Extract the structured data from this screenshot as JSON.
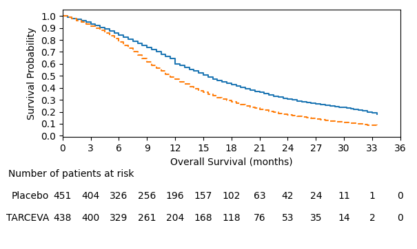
{
  "chart_data": {
    "type": "step",
    "x_label": "Overall Survival (months)",
    "y_label": "Survival Probability",
    "xlim": [
      0,
      36
    ],
    "ylim": [
      -0.01,
      1.05
    ],
    "xticks": [
      0,
      3,
      6,
      9,
      12,
      15,
      18,
      21,
      24,
      27,
      30,
      33,
      36
    ],
    "yticks": [
      {
        "value": 0,
        "label": "0.0"
      },
      0.1,
      0.2,
      0.3,
      0.4,
      0.5,
      0.6,
      0.7,
      0.8,
      0.9,
      {
        "value": 1,
        "label": "1.0"
      }
    ],
    "at_risk_title": "Number of patients at risk",
    "at_risk_x": [
      0,
      3,
      6,
      9,
      12,
      15,
      18,
      21,
      24,
      27,
      30,
      33,
      36
    ],
    "series": [
      {
        "name": "Placebo",
        "line_style": "solid",
        "x": [
          0,
          0.5,
          1.0,
          1.5,
          2.0,
          2.5,
          3.0,
          3.5,
          4.0,
          4.5,
          5.0,
          5.5,
          6.0,
          6.5,
          7.0,
          7.5,
          8.0,
          8.5,
          9.0,
          9.5,
          10.0,
          10.5,
          11.0,
          11.5,
          12.0,
          12.5,
          13.0,
          13.5,
          14.0,
          14.5,
          15.0,
          15.5,
          16.0,
          16.5,
          17.0,
          17.5,
          18.0,
          18.5,
          19.0,
          19.5,
          20.0,
          20.5,
          21.0,
          21.5,
          22.0,
          22.5,
          23.0,
          23.5,
          24.0,
          24.5,
          25.0,
          25.5,
          26.0,
          26.5,
          27.0,
          27.5,
          28.0,
          28.5,
          29.0,
          29.5,
          30.0,
          30.3,
          30.7,
          31.0,
          31.5,
          32.0,
          32.5,
          33.0,
          33.5
        ],
        "values": [
          1.0,
          0.99,
          0.98,
          0.97,
          0.96,
          0.95,
          0.935,
          0.92,
          0.905,
          0.89,
          0.875,
          0.858,
          0.84,
          0.822,
          0.804,
          0.787,
          0.769,
          0.752,
          0.735,
          0.718,
          0.7,
          0.682,
          0.664,
          0.646,
          0.6,
          0.585,
          0.57,
          0.555,
          0.54,
          0.525,
          0.505,
          0.49,
          0.475,
          0.46,
          0.448,
          0.436,
          0.425,
          0.414,
          0.403,
          0.392,
          0.382,
          0.372,
          0.362,
          0.35,
          0.34,
          0.332,
          0.323,
          0.314,
          0.305,
          0.298,
          0.291,
          0.284,
          0.277,
          0.272,
          0.266,
          0.261,
          0.255,
          0.25,
          0.245,
          0.24,
          0.235,
          0.23,
          0.225,
          0.22,
          0.215,
          0.21,
          0.2,
          0.19,
          0.18
        ],
        "at_risk": [
          451,
          404,
          326,
          256,
          196,
          157,
          102,
          63,
          42,
          24,
          11,
          1,
          0
        ]
      },
      {
        "name": "TARCEVA",
        "line_style": "dashed",
        "x": [
          0,
          0.5,
          1.0,
          1.5,
          2.0,
          2.5,
          3.0,
          3.5,
          4.0,
          4.5,
          5.0,
          5.5,
          6.0,
          6.5,
          7.0,
          7.5,
          8.0,
          8.5,
          9.0,
          9.5,
          10.0,
          10.5,
          11.0,
          11.5,
          12.0,
          12.5,
          13.0,
          13.5,
          14.0,
          14.5,
          15.0,
          15.5,
          16.0,
          16.5,
          17.0,
          17.5,
          18.0,
          18.5,
          19.0,
          19.5,
          20.0,
          20.5,
          21.0,
          21.5,
          22.0,
          22.5,
          23.0,
          23.5,
          24.0,
          24.5,
          25.0,
          25.5,
          26.0,
          26.5,
          27.0,
          27.5,
          28.0,
          28.5,
          29.0,
          29.5,
          30.0,
          30.5,
          31.0,
          31.5,
          32.0,
          32.5,
          33.0,
          33.5
        ],
        "values": [
          1.0,
          0.99,
          0.977,
          0.963,
          0.948,
          0.933,
          0.916,
          0.898,
          0.878,
          0.857,
          0.834,
          0.81,
          0.784,
          0.757,
          0.729,
          0.701,
          0.673,
          0.645,
          0.617,
          0.59,
          0.564,
          0.539,
          0.515,
          0.492,
          0.47,
          0.449,
          0.43,
          0.412,
          0.394,
          0.378,
          0.362,
          0.347,
          0.333,
          0.319,
          0.306,
          0.293,
          0.281,
          0.27,
          0.259,
          0.249,
          0.239,
          0.23,
          0.221,
          0.212,
          0.204,
          0.196,
          0.188,
          0.181,
          0.174,
          0.168,
          0.161,
          0.155,
          0.149,
          0.143,
          0.138,
          0.133,
          0.128,
          0.123,
          0.119,
          0.115,
          0.111,
          0.107,
          0.103,
          0.099,
          0.095,
          0.091,
          0.087,
          0.083
        ],
        "at_risk": [
          438,
          400,
          329,
          261,
          204,
          168,
          118,
          76,
          53,
          35,
          14,
          2,
          0
        ]
      }
    ]
  }
}
